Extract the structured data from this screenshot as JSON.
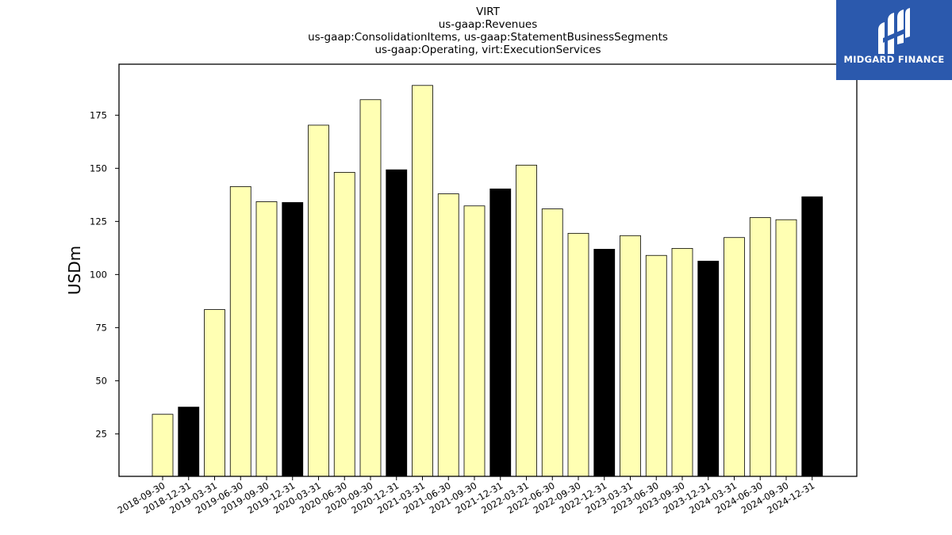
{
  "chart_data": {
    "type": "bar",
    "title_lines": [
      "VIRT",
      "us-gaap:Revenues",
      "us-gaap:ConsolidationItems, us-gaap:StatementBusinessSegments",
      "us-gaap:Operating, virt:ExecutionServices"
    ],
    "xlabel": "",
    "ylabel": "USDm",
    "ylim": [
      5,
      199
    ],
    "yticks": [
      25,
      50,
      75,
      100,
      125,
      150,
      175
    ],
    "grid": false,
    "categories": [
      "2018-09-30",
      "2018-12-31",
      "2019-03-31",
      "2019-06-30",
      "2019-09-30",
      "2019-12-31",
      "2020-03-31",
      "2020-06-30",
      "2020-09-30",
      "2020-12-31",
      "2021-03-31",
      "2021-06-30",
      "2021-09-30",
      "2021-12-31",
      "2022-03-31",
      "2022-06-30",
      "2022-09-30",
      "2022-12-31",
      "2023-03-31",
      "2023-06-30",
      "2023-09-30",
      "2023-12-31",
      "2024-03-31",
      "2024-06-30",
      "2024-09-30",
      "2024-12-31"
    ],
    "values": [
      34.2,
      37.6,
      83.5,
      141.4,
      134.3,
      133.9,
      170.3,
      148.1,
      182.3,
      149.3,
      189.0,
      138.0,
      132.3,
      140.3,
      151.5,
      130.9,
      119.4,
      111.9,
      118.3,
      109.0,
      112.3,
      106.3,
      117.4,
      126.8,
      125.8,
      136.6
    ],
    "colors": {
      "quarter": "#ffffb3",
      "year_end": "#000000",
      "edge": "#000000"
    },
    "year_end_flags": [
      false,
      true,
      false,
      false,
      false,
      true,
      false,
      false,
      false,
      true,
      false,
      false,
      false,
      true,
      false,
      false,
      false,
      true,
      false,
      false,
      false,
      true,
      false,
      false,
      false,
      true
    ]
  },
  "logo": {
    "text": "MIDGARD FINANCE",
    "background": "#2b59ad"
  }
}
